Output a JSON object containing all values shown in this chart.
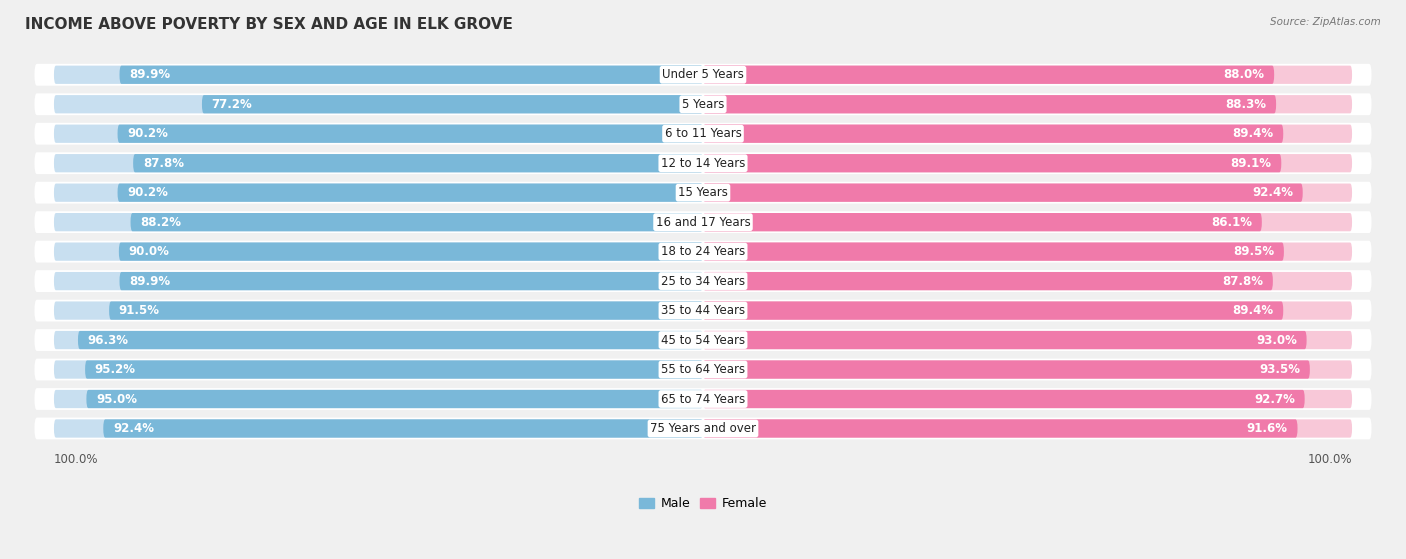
{
  "title": "INCOME ABOVE POVERTY BY SEX AND AGE IN ELK GROVE",
  "source": "Source: ZipAtlas.com",
  "categories": [
    "Under 5 Years",
    "5 Years",
    "6 to 11 Years",
    "12 to 14 Years",
    "15 Years",
    "16 and 17 Years",
    "18 to 24 Years",
    "25 to 34 Years",
    "35 to 44 Years",
    "45 to 54 Years",
    "55 to 64 Years",
    "65 to 74 Years",
    "75 Years and over"
  ],
  "male_values": [
    89.9,
    77.2,
    90.2,
    87.8,
    90.2,
    88.2,
    90.0,
    89.9,
    91.5,
    96.3,
    95.2,
    95.0,
    92.4
  ],
  "female_values": [
    88.0,
    88.3,
    89.4,
    89.1,
    92.4,
    86.1,
    89.5,
    87.8,
    89.4,
    93.0,
    93.5,
    92.7,
    91.6
  ],
  "male_color": "#7ab8d9",
  "male_color_light": "#c8dff0",
  "female_color": "#f07aaa",
  "female_color_light": "#f8c8d8",
  "background_color": "#f0f0f0",
  "title_fontsize": 11,
  "label_fontsize": 8.5,
  "value_fontsize": 8.5,
  "axis_max": 100.0,
  "legend_male": "Male",
  "legend_female": "Female"
}
